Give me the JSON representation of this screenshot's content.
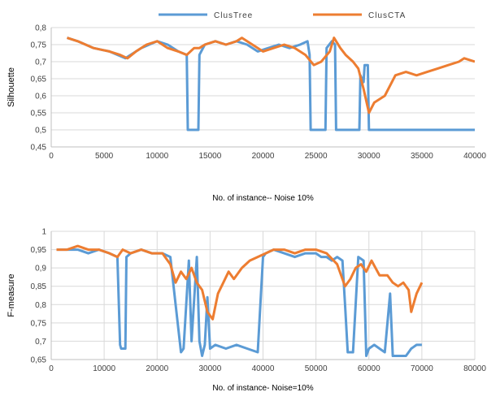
{
  "chart_data": [
    {
      "type": "line",
      "xlabel": "No. of instance-- Noise 10%",
      "ylabel": "Silhouette",
      "xlim": [
        0,
        40000
      ],
      "ylim": [
        0.45,
        0.8
      ],
      "xticks": [
        0,
        5000,
        10000,
        15000,
        20000,
        25000,
        30000,
        35000,
        40000
      ],
      "xtick_labels": [
        "0",
        "5000",
        "10000",
        "15000",
        "20000",
        "25000",
        "30000",
        "35000",
        "40000"
      ],
      "yticks": [
        0.45,
        0.5,
        0.55,
        0.6,
        0.65,
        0.7,
        0.75,
        0.8
      ],
      "ytick_labels": [
        "0,45",
        "0,5",
        "0,55",
        "0,6",
        "0,65",
        "0,7",
        "0,75",
        "0,8"
      ],
      "grid": "horizontal",
      "legend": "top-center",
      "series": [
        {
          "name": "ClusTree",
          "color": "#5b9bd5",
          "x": [
            1500,
            2500,
            4000,
            5500,
            7000,
            8500,
            10000,
            11000,
            12000,
            12800,
            12900,
            13000,
            13900,
            14000,
            14500,
            15500,
            16500,
            17500,
            18500,
            19500,
            20500,
            21500,
            22500,
            23500,
            24200,
            24400,
            24500,
            25900,
            26000,
            26500,
            26800,
            26900,
            27000,
            29100,
            29200,
            29500,
            29600,
            29700,
            29900,
            30000,
            40000
          ],
          "y": [
            0.77,
            0.76,
            0.74,
            0.73,
            0.71,
            0.74,
            0.76,
            0.75,
            0.73,
            0.72,
            0.5,
            0.5,
            0.5,
            0.72,
            0.75,
            0.76,
            0.75,
            0.76,
            0.75,
            0.73,
            0.74,
            0.75,
            0.74,
            0.75,
            0.76,
            0.72,
            0.5,
            0.5,
            0.74,
            0.76,
            0.75,
            0.5,
            0.5,
            0.5,
            0.66,
            0.64,
            0.69,
            0.69,
            0.69,
            0.5,
            0.5
          ]
        },
        {
          "name": "ClusCTA",
          "color": "#ed7d31",
          "x": [
            1500,
            2500,
            4000,
            5500,
            6500,
            7200,
            8000,
            9000,
            10000,
            11000,
            12000,
            12800,
            13500,
            14000,
            14500,
            15500,
            16500,
            17500,
            18000,
            19000,
            20000,
            21000,
            22000,
            23000,
            24000,
            24800,
            25500,
            26300,
            26700,
            27300,
            27800,
            28500,
            29000,
            29500,
            30000,
            30500,
            31500,
            32500,
            33500,
            34500,
            35500,
            36500,
            37500,
            38500,
            39000,
            40000
          ],
          "y": [
            0.77,
            0.76,
            0.74,
            0.73,
            0.72,
            0.71,
            0.73,
            0.75,
            0.76,
            0.74,
            0.73,
            0.72,
            0.74,
            0.74,
            0.75,
            0.76,
            0.75,
            0.76,
            0.77,
            0.75,
            0.73,
            0.74,
            0.75,
            0.74,
            0.72,
            0.69,
            0.7,
            0.73,
            0.77,
            0.74,
            0.72,
            0.7,
            0.68,
            0.62,
            0.55,
            0.58,
            0.6,
            0.66,
            0.67,
            0.66,
            0.67,
            0.68,
            0.69,
            0.7,
            0.71,
            0.7
          ]
        }
      ]
    },
    {
      "type": "line",
      "xlabel": "No. of instance- Noise=10%",
      "ylabel": "F-measure",
      "xlim": [
        0,
        80000
      ],
      "ylim": [
        0.65,
        1
      ],
      "xticks": [
        0,
        10000,
        20000,
        30000,
        40000,
        50000,
        60000,
        70000,
        80000
      ],
      "xtick_labels": [
        "0",
        "10000",
        "20000",
        "30000",
        "40000",
        "50000",
        "60000",
        "70000",
        "80000"
      ],
      "yticks": [
        0.65,
        0.7,
        0.75,
        0.8,
        0.85,
        0.9,
        0.95,
        1
      ],
      "ytick_labels": [
        "0,65",
        "0,7",
        "0,75",
        "0,8",
        "0,85",
        "0,9",
        "0,95",
        "1"
      ],
      "grid": "both",
      "series": [
        {
          "name": "ClusTree",
          "color": "#5b9bd5",
          "x": [
            1000,
            3000,
            5000,
            7000,
            9000,
            11000,
            12500,
            13000,
            13200,
            14000,
            14200,
            15000,
            17000,
            19000,
            21000,
            22500,
            23500,
            24500,
            25000,
            26000,
            26500,
            27500,
            28000,
            28500,
            29000,
            29500,
            30000,
            31000,
            33000,
            35000,
            37000,
            39000,
            40000,
            40500,
            42000,
            44000,
            46000,
            48000,
            50000,
            51000,
            52000,
            53000,
            54000,
            55000,
            55500,
            56000,
            57000,
            58000,
            59000,
            59500,
            60000,
            61000,
            62000,
            63000,
            64000,
            64500,
            65000,
            66000,
            67000,
            67500,
            68000,
            69000,
            70000
          ],
          "y": [
            0.95,
            0.95,
            0.95,
            0.94,
            0.95,
            0.94,
            0.93,
            0.69,
            0.68,
            0.68,
            0.93,
            0.94,
            0.95,
            0.94,
            0.94,
            0.93,
            0.8,
            0.67,
            0.68,
            0.92,
            0.7,
            0.93,
            0.7,
            0.66,
            0.69,
            0.82,
            0.68,
            0.69,
            0.68,
            0.69,
            0.68,
            0.67,
            0.93,
            0.94,
            0.95,
            0.94,
            0.93,
            0.94,
            0.94,
            0.93,
            0.93,
            0.92,
            0.93,
            0.92,
            0.8,
            0.67,
            0.67,
            0.93,
            0.92,
            0.66,
            0.68,
            0.69,
            0.68,
            0.67,
            0.83,
            0.66,
            0.66,
            0.66,
            0.66,
            0.67,
            0.68,
            0.69,
            0.69
          ]
        },
        {
          "name": "ClusCTA",
          "color": "#ed7d31",
          "x": [
            1000,
            3000,
            5000,
            7000,
            9000,
            11000,
            12500,
            13500,
            15000,
            17000,
            19000,
            21000,
            22500,
            23500,
            24500,
            25500,
            26500,
            27500,
            28500,
            29500,
            30500,
            31500,
            32500,
            33500,
            34500,
            36000,
            37500,
            39000,
            40500,
            42000,
            44000,
            46000,
            48000,
            50000,
            52000,
            54000,
            55500,
            56500,
            57500,
            58500,
            59500,
            60500,
            62000,
            63500,
            64500,
            65500,
            66500,
            67500,
            68000,
            69000,
            70000
          ],
          "y": [
            0.95,
            0.95,
            0.96,
            0.95,
            0.95,
            0.94,
            0.93,
            0.95,
            0.94,
            0.95,
            0.94,
            0.94,
            0.91,
            0.86,
            0.89,
            0.87,
            0.9,
            0.86,
            0.84,
            0.78,
            0.76,
            0.83,
            0.86,
            0.89,
            0.87,
            0.9,
            0.92,
            0.93,
            0.94,
            0.95,
            0.95,
            0.94,
            0.95,
            0.95,
            0.94,
            0.91,
            0.85,
            0.87,
            0.9,
            0.91,
            0.89,
            0.92,
            0.88,
            0.88,
            0.86,
            0.85,
            0.86,
            0.84,
            0.78,
            0.83,
            0.86
          ]
        }
      ]
    }
  ]
}
